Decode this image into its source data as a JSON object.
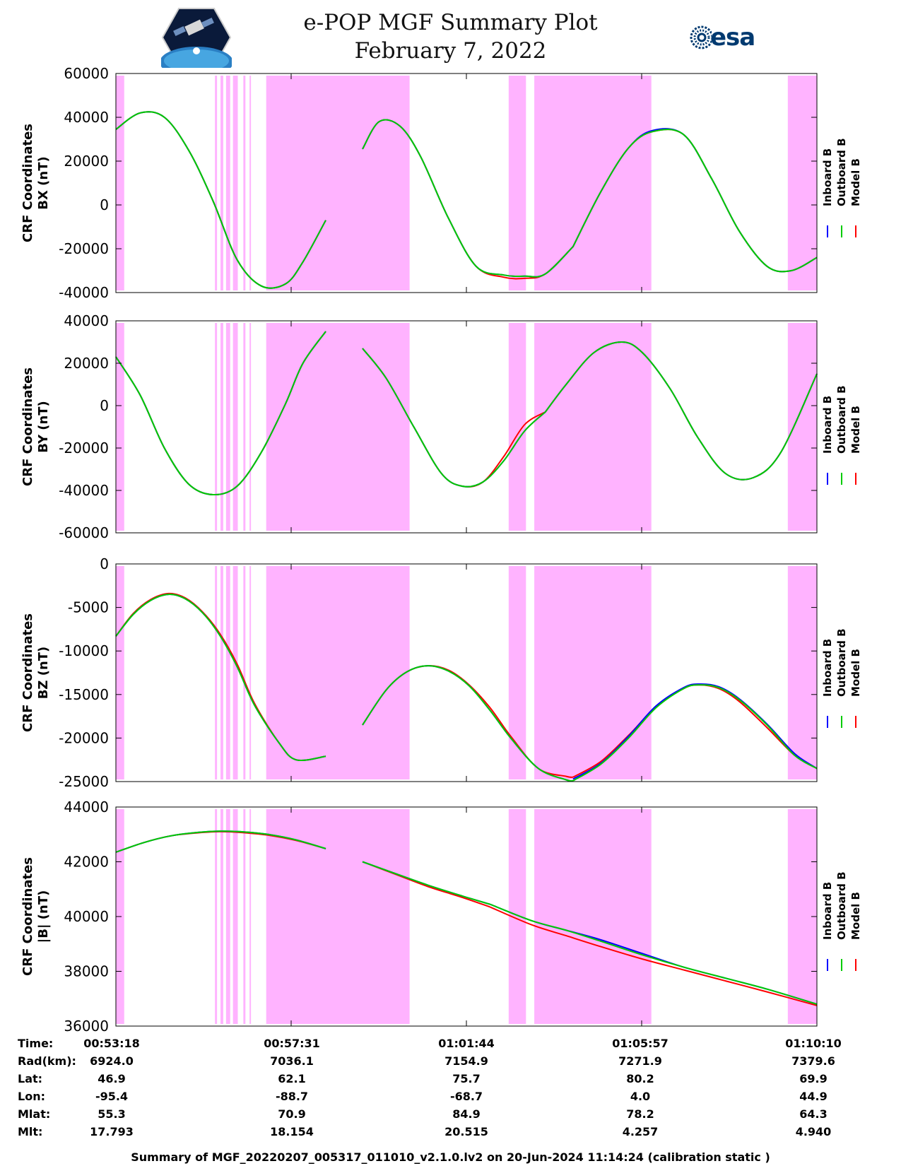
{
  "header": {
    "title_line1": "e-POP MGF Summary Plot",
    "title_line2": "February 7, 2022",
    "left_logo": "cassiope-epop-logo",
    "right_logo_text": "esa",
    "right_logo": "esa-logo"
  },
  "colors": {
    "inboard": "#0000ff",
    "outboard": "#00cc00",
    "model": "#ff0000",
    "mask": "#ffb3ff",
    "esa_blue": "#003a70"
  },
  "chart_data": {
    "type": "line",
    "x_range_sec": [
      0,
      1012
    ],
    "x_tick_seconds": [
      0,
      253,
      506,
      759,
      1012
    ],
    "legend": [
      "Inboard B",
      "Outboard B",
      "Model B"
    ],
    "legend_position": "right, vertical",
    "mask_intervals_sec": [
      [
        0,
        12
      ],
      [
        143,
        146
      ],
      [
        151,
        155
      ],
      [
        159,
        165
      ],
      [
        169,
        176
      ],
      [
        184,
        187
      ],
      [
        193,
        195
      ],
      [
        217,
        424
      ],
      [
        567,
        592
      ],
      [
        604,
        773
      ],
      [
        970,
        1012
      ]
    ],
    "panels": [
      {
        "ylabel_line1": "CRF Coordinates",
        "ylabel_line2": "BX (nT)",
        "ylim": [
          -40000,
          60000
        ],
        "y_ticks": [
          "60000",
          "40000",
          "20000",
          "0",
          "-20000",
          "-40000"
        ],
        "y_tick_values": [
          60000,
          40000,
          20000,
          0,
          -20000,
          -40000
        ],
        "segments": [
          {
            "x": [
              0,
              35,
              70,
              105,
              140,
              175,
              210,
              245,
              270,
              303
            ],
            "outboard": [
              34500,
              42000,
              40000,
              25000,
              2000,
              -25000,
              -37000,
              -36000,
              -26000,
              -7000
            ],
            "inboard": [
              34500,
              42000,
              40000,
              25000,
              2000,
              -25000,
              -37000,
              -36000,
              -26000,
              -7000
            ],
            "model": [
              34500,
              42000,
              40000,
              25000,
              2000,
              -25000,
              -37000,
              -36000,
              -26000,
              -7000
            ]
          },
          {
            "x": [
              356,
              380,
              410,
              440,
              480,
              520,
              560,
              590,
              620,
              660
            ],
            "outboard": [
              25500,
              38000,
              36000,
              22000,
              -6000,
              -28000,
              -32000,
              -32500,
              -31500,
              -19000
            ],
            "inboard": [
              25500,
              38000,
              36000,
              22000,
              -6000,
              -28000,
              -32000,
              -32500,
              -31500,
              -19000
            ],
            "model": [
              25500,
              38000,
              36000,
              22000,
              -6000,
              -28000,
              -33000,
              -33500,
              -31500,
              -19000
            ]
          },
          {
            "x": [
              660,
              700,
              740,
              775,
              820,
              860,
              900,
              940,
              975,
              1012
            ],
            "outboard": [
              -19000,
              6000,
              26000,
              33500,
              32000,
              12000,
              -12000,
              -28000,
              -30000,
              -24000
            ],
            "inboard": [
              -19000,
              6000,
              26000,
              34000,
              32000,
              12000,
              -12000,
              -28000,
              -30000,
              -24000
            ],
            "model": [
              -19000,
              6000,
              26000,
              33500,
              32000,
              12000,
              -12000,
              -28000,
              -30000,
              -24000
            ]
          }
        ]
      },
      {
        "ylabel_line1": "CRF Coordinates",
        "ylabel_line2": "BY (nT)",
        "ylim": [
          -60000,
          40000
        ],
        "y_ticks": [
          "40000",
          "20000",
          "0",
          "-20000",
          "-40000",
          "-60000"
        ],
        "y_tick_values": [
          40000,
          20000,
          0,
          -20000,
          -40000,
          -60000
        ],
        "segments": [
          {
            "x": [
              0,
              35,
              70,
              105,
              140,
              175,
              210,
              245,
              270,
              303
            ],
            "outboard": [
              23000,
              5000,
              -20000,
              -37000,
              -42000,
              -38000,
              -22000,
              1000,
              20000,
              35000
            ],
            "inboard": [
              23000,
              5000,
              -20000,
              -37000,
              -42000,
              -38000,
              -22000,
              1000,
              20000,
              35000
            ],
            "model": [
              23000,
              5000,
              -20000,
              -37000,
              -42000,
              -38000,
              -22000,
              1000,
              20000,
              35000
            ]
          },
          {
            "x": [
              356,
              390,
              430,
              470,
              500,
              530,
              560,
              590,
              620
            ],
            "outboard": [
              27000,
              13000,
              -10000,
              -32000,
              -38000,
              -36000,
              -26000,
              -12000,
              -3000
            ],
            "inboard": [
              27000,
              13000,
              -10000,
              -32000,
              -38000,
              -36000,
              -26000,
              -12000,
              -3000
            ],
            "model": [
              27000,
              13000,
              -10000,
              -32000,
              -38000,
              -36000,
              -24000,
              -9000,
              -3000
            ]
          },
          {
            "x": [
              620,
              650,
              690,
              730,
              760,
              800,
              840,
              880,
              920,
              960,
              1012
            ],
            "outboard": [
              -3000,
              10000,
              25000,
              30000,
              25000,
              8000,
              -15000,
              -32000,
              -34000,
              -22000,
              15000
            ],
            "inboard": [
              -3000,
              10000,
              25000,
              30000,
              25000,
              8000,
              -15000,
              -32000,
              -34000,
              -22000,
              15000
            ],
            "model": [
              -3000,
              10000,
              25000,
              30000,
              25000,
              8000,
              -15000,
              -32000,
              -34000,
              -22000,
              15000
            ]
          }
        ]
      },
      {
        "ylabel_line1": "CRF Coordinates",
        "ylabel_line2": "BZ (nT)",
        "ylim": [
          -25000,
          0
        ],
        "y_ticks": [
          "0",
          "-5000",
          "-10000",
          "-15000",
          "-20000",
          "-25000"
        ],
        "y_tick_values": [
          0,
          -5000,
          -10000,
          -15000,
          -20000,
          -25000
        ],
        "segments": [
          {
            "x": [
              0,
              25,
              50,
              76,
              100,
              125,
              150,
              175,
              200,
              235,
              260,
              303
            ],
            "outboard": [
              -8300,
              -5800,
              -4200,
              -3500,
              -4000,
              -5600,
              -8200,
              -11800,
              -16200,
              -20500,
              -22500,
              -22100
            ],
            "inboard": [
              -8300,
              -5800,
              -4200,
              -3500,
              -4000,
              -5600,
              -8200,
              -11800,
              -16200,
              -20500,
              -22500,
              -22100
            ],
            "model": [
              -8300,
              -5700,
              -4100,
              -3400,
              -3900,
              -5500,
              -8000,
              -11500,
              -16000,
              -20500,
              -22500,
              -22100
            ]
          },
          {
            "x": [
              356,
              390,
              420,
              450,
              480,
              510,
              540,
              570,
              610,
              650,
              660
            ],
            "outboard": [
              -18500,
              -14500,
              -12400,
              -11700,
              -12300,
              -14000,
              -16800,
              -20000,
              -23500,
              -24800,
              -24900
            ],
            "inboard": [
              -18500,
              -14500,
              -12400,
              -11700,
              -12300,
              -14000,
              -16800,
              -20000,
              -23500,
              -24800,
              -24900
            ],
            "model": [
              -18500,
              -14500,
              -12400,
              -11700,
              -12200,
              -13900,
              -16500,
              -19800,
              -23500,
              -24400,
              -24500
            ]
          },
          {
            "x": [
              660,
              700,
              740,
              780,
              820,
              842,
              870,
              900,
              940,
              980,
              1012
            ],
            "outboard": [
              -24900,
              -23000,
              -20000,
              -16500,
              -14300,
              -13900,
              -14200,
              -15600,
              -18500,
              -22000,
              -23500
            ],
            "inboard": [
              -24700,
              -22900,
              -19800,
              -16300,
              -14200,
              -13800,
              -14100,
              -15500,
              -18400,
              -21800,
              -23500
            ],
            "model": [
              -24500,
              -22700,
              -19700,
              -16400,
              -14300,
              -13900,
              -14300,
              -15800,
              -18800,
              -22000,
              -23500
            ]
          }
        ]
      },
      {
        "ylabel_line1": "CRF Coordinates",
        "ylabel_line2": "|B| (nT)",
        "ylim": [
          36000,
          44000
        ],
        "y_ticks": [
          "44000",
          "42000",
          "40000",
          "38000",
          "36000"
        ],
        "y_tick_values": [
          44000,
          42000,
          40000,
          38000,
          36000
        ],
        "segments": [
          {
            "x": [
              0,
              40,
              80,
              120,
              150,
              180,
              220,
              260,
              303
            ],
            "outboard": [
              42350,
              42700,
              42950,
              43080,
              43120,
              43100,
              43000,
              42800,
              42480
            ],
            "inboard": [
              42350,
              42700,
              42950,
              43080,
              43120,
              43100,
              43000,
              42800,
              42480
            ],
            "model": [
              42350,
              42700,
              42950,
              43060,
              43100,
              43070,
              42970,
              42780,
              42480
            ]
          },
          {
            "x": [
              356,
              400,
              450,
              500,
              540
            ],
            "outboard": [
              42000,
              41600,
              41150,
              40750,
              40450
            ],
            "inboard": [
              42000,
              41600,
              41150,
              40750,
              40450
            ],
            "model": [
              42000,
              41580,
              41100,
              40700,
              40350
            ]
          },
          {
            "x": [
              540,
              600,
              650,
              700,
              760,
              820,
              880,
              940,
              1012
            ],
            "outboard": [
              40450,
              39850,
              39500,
              39100,
              38600,
              38150,
              37750,
              37350,
              36800
            ],
            "inboard": [
              40450,
              39850,
              39500,
              39150,
              38650,
              38150,
              37750,
              37350,
              36800
            ],
            "model": [
              40350,
              39700,
              39300,
              38900,
              38450,
              38050,
              37650,
              37250,
              36750
            ]
          }
        ]
      }
    ]
  },
  "footer": {
    "row_labels": [
      "Time:",
      "Rad(km):",
      "Lat:",
      "Lon:",
      "Mlat:",
      "Mlt:"
    ],
    "columns": [
      [
        "00:53:18",
        "6924.0",
        "46.9",
        "-95.4",
        "55.3",
        "17.793"
      ],
      [
        "00:57:31",
        "7036.1",
        "62.1",
        "-88.7",
        "70.9",
        "18.154"
      ],
      [
        "01:01:44",
        "7154.9",
        "75.7",
        "-68.7",
        "84.9",
        "20.515"
      ],
      [
        "01:05:57",
        "7271.9",
        "80.2",
        "4.0",
        "78.2",
        "4.257"
      ],
      [
        "01:10:10",
        "7379.6",
        "69.9",
        "44.9",
        "64.3",
        "4.940"
      ]
    ],
    "caption": "Summary of MGF_20220207_005317_011010_v2.1.0.lv2 on 20-Jun-2024 11:14:24 (calibration static )"
  }
}
